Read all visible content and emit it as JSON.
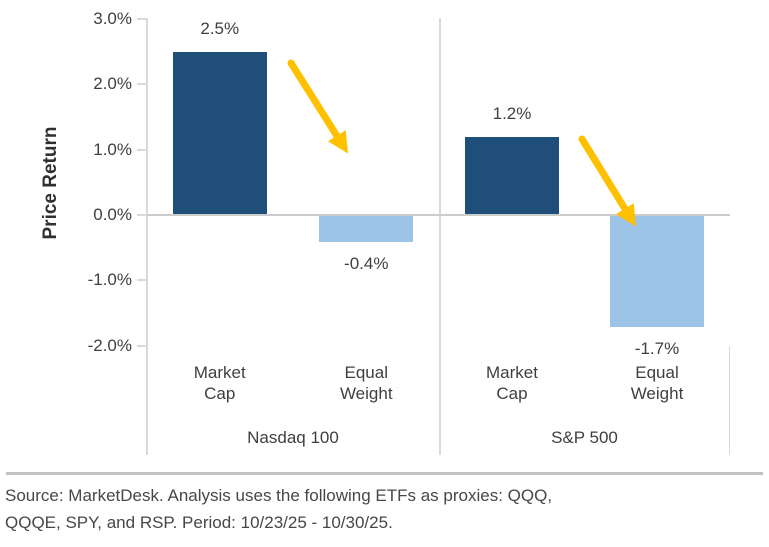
{
  "chart_data": {
    "type": "bar",
    "title": "",
    "ylabel": "Price Return",
    "xlabel": "",
    "ylim": [
      -2.0,
      3.0
    ],
    "grid": false,
    "legend": "none",
    "yticks": [
      {
        "value": 3.0,
        "label": "3.0%"
      },
      {
        "value": 2.0,
        "label": "2.0%"
      },
      {
        "value": 1.0,
        "label": "1.0%"
      },
      {
        "value": 0.0,
        "label": "0.0%"
      },
      {
        "value": -1.0,
        "label": "-1.0%"
      },
      {
        "value": -2.0,
        "label": "-2.0%"
      }
    ],
    "groups": [
      "Nasdaq 100",
      "S&P 500"
    ],
    "categories": [
      "Market Cap",
      "Equal Weight"
    ],
    "bars": [
      {
        "group": "Nasdaq 100",
        "category": "Market Cap",
        "value": 2.5,
        "value_label": "2.5%",
        "color_key": "market_cap"
      },
      {
        "group": "Nasdaq 100",
        "category": "Equal Weight",
        "value": -0.4,
        "value_label": "-0.4%",
        "color_key": "equal_weight"
      },
      {
        "group": "S&P 500",
        "category": "Market Cap",
        "value": 1.2,
        "value_label": "1.2%",
        "color_key": "market_cap"
      },
      {
        "group": "S&P 500",
        "category": "Equal Weight",
        "value": -1.7,
        "value_label": "-1.7%",
        "color_key": "equal_weight"
      }
    ],
    "colors": {
      "market_cap": "#1F4E79",
      "equal_weight": "#9DC3E6",
      "arrow": "#FFC000",
      "axis_line": "#D9D9D9",
      "text": "#3F3F3F"
    },
    "annotations": [
      {
        "type": "arrow",
        "group": "Nasdaq 100",
        "meaning": "decline from Market Cap to Equal Weight"
      },
      {
        "type": "arrow",
        "group": "S&P 500",
        "meaning": "decline from Market Cap to Equal Weight"
      }
    ]
  },
  "footer": {
    "source_line1": "Source: MarketDesk. Analysis uses the following ETFs as proxies: QQQ,",
    "source_line2": "QQQE, SPY, and RSP. Period: 10/23/25 - 10/30/25."
  }
}
